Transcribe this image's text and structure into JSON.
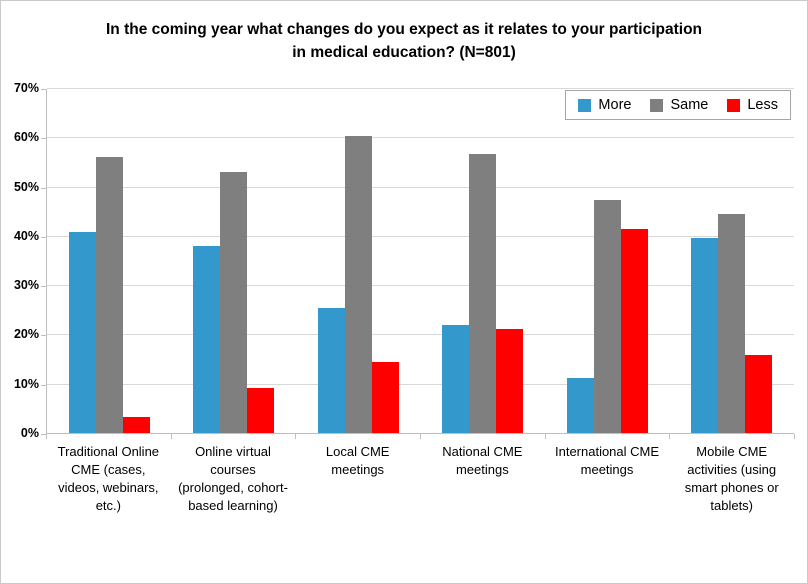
{
  "chart_title_lines": [
    "In the coming year what changes do you expect as it relates to your participation",
    "in medical education? (N=801)"
  ],
  "chart_data": {
    "type": "bar",
    "title": "In the coming year what changes do you expect as it relates to your participation in medical education? (N=801)",
    "categories": [
      "Traditional Online CME (cases, videos, webinars, etc.)",
      "Online virtual courses (prolonged, cohort-based learning)",
      "Local CME meetings",
      "National CME meetings",
      "International CME meetings",
      "Mobile CME activities (using smart phones or tablets)"
    ],
    "series": [
      {
        "name": "More",
        "color": "#3399CC",
        "values": [
          40.8,
          38.0,
          25.3,
          22.0,
          11.2,
          39.5
        ]
      },
      {
        "name": "Same",
        "color": "#7F7F7F",
        "values": [
          56.0,
          52.9,
          60.2,
          56.6,
          47.3,
          44.4
        ]
      },
      {
        "name": "Less",
        "color": "#FF0000",
        "values": [
          3.3,
          9.1,
          14.4,
          21.2,
          41.4,
          15.9
        ]
      }
    ],
    "xlabel": "",
    "ylabel": "",
    "ylim": [
      0,
      70
    ],
    "ytick_labels": [
      "0%",
      "10%",
      "20%",
      "30%",
      "40%",
      "50%",
      "60%",
      "70%"
    ],
    "grid": true,
    "legend_position": "top-right",
    "legend_labels": [
      "More",
      "Same",
      "Less"
    ]
  }
}
